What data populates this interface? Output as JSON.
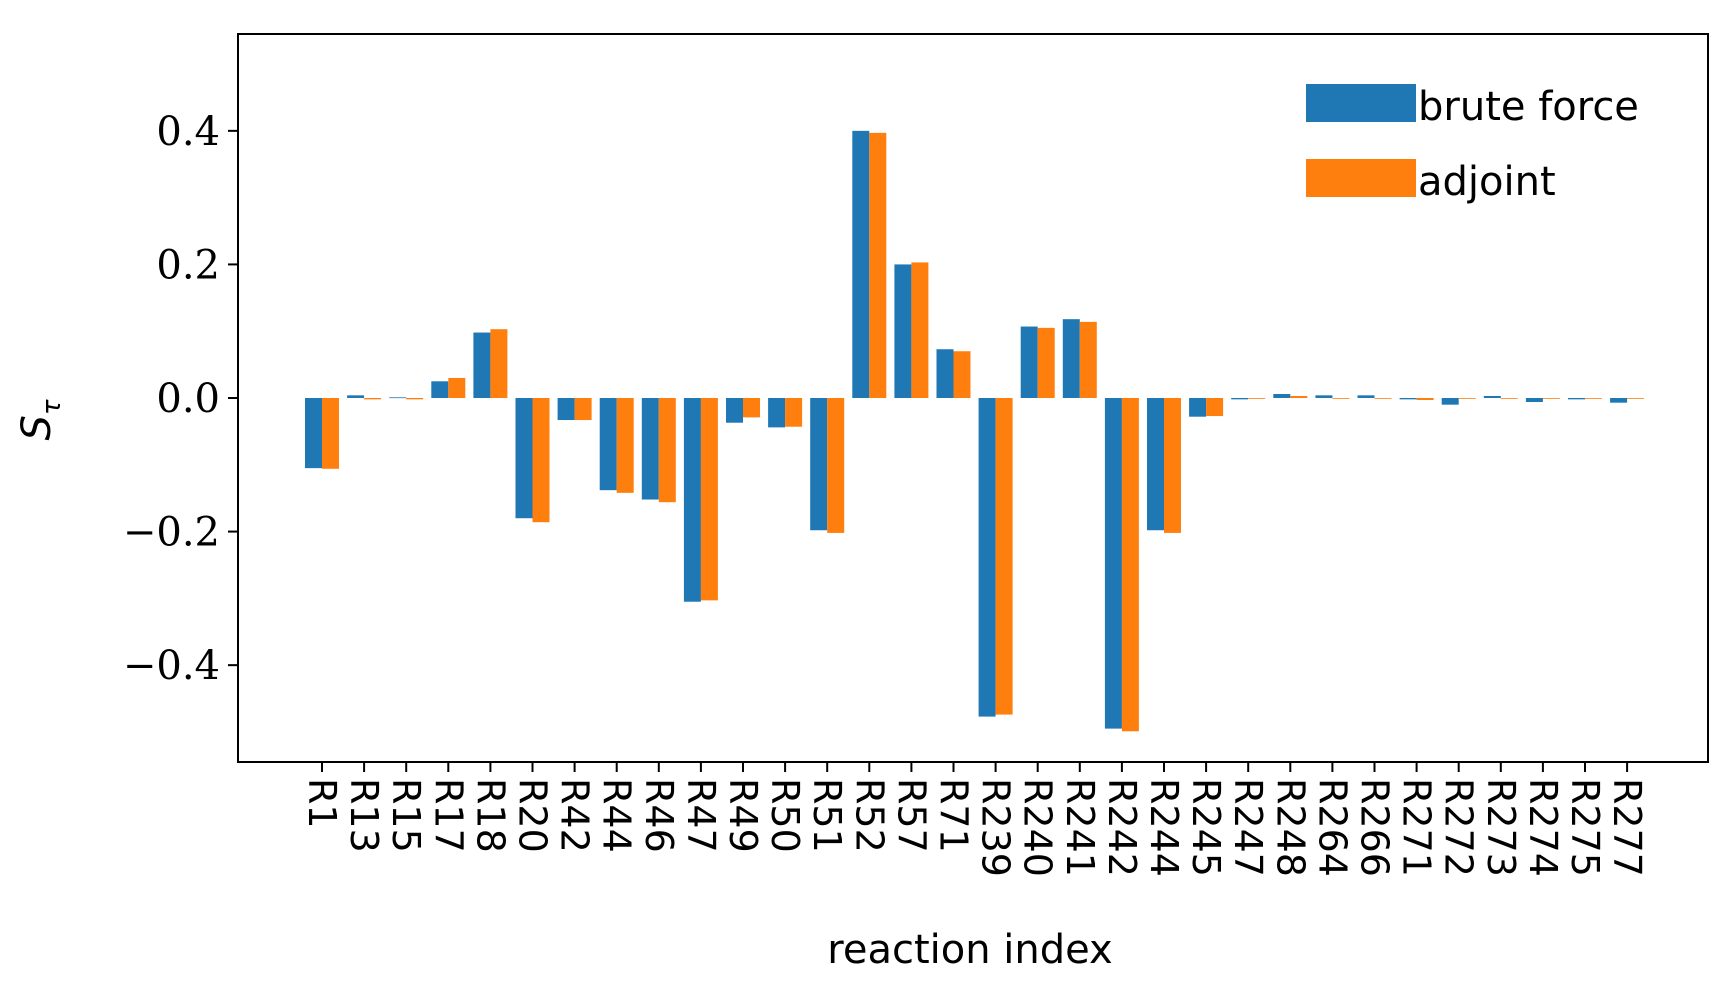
{
  "chart_data": {
    "type": "bar",
    "title": "",
    "xlabel": "reaction index",
    "ylabel": "S",
    "ylabel_sub": "τ",
    "ylim": [
      -0.545,
      0.545
    ],
    "yticks": [
      0.4,
      0.2,
      0.0,
      -0.2,
      -0.4
    ],
    "ytick_labels": [
      "0.4",
      "0.2",
      "0.0",
      "−0.2",
      "−0.4"
    ],
    "legend_position": "top-right",
    "categories": [
      "R1",
      "R13",
      "R15",
      "R17",
      "R18",
      "R20",
      "R42",
      "R44",
      "R46",
      "R47",
      "R49",
      "R50",
      "R51",
      "R52",
      "R57",
      "R71",
      "R239",
      "R240",
      "R241",
      "R242",
      "R244",
      "R245",
      "R247",
      "R248",
      "R264",
      "R266",
      "R271",
      "R272",
      "R273",
      "R274",
      "R275",
      "R277"
    ],
    "series": [
      {
        "name": "brute force",
        "color": "#1f77b4",
        "values": [
          -0.105,
          0.004,
          0.001,
          0.025,
          0.098,
          -0.18,
          -0.033,
          -0.138,
          -0.152,
          -0.305,
          -0.037,
          -0.044,
          -0.198,
          0.4,
          0.2,
          0.073,
          -0.477,
          0.107,
          0.118,
          -0.495,
          -0.198,
          -0.028,
          -0.002,
          0.006,
          0.004,
          0.004,
          -0.002,
          -0.01,
          0.003,
          -0.006,
          -0.002,
          -0.007
        ]
      },
      {
        "name": "adjoint",
        "color": "#ff7f0e",
        "values": [
          -0.106,
          -0.002,
          -0.002,
          0.03,
          0.103,
          -0.186,
          -0.033,
          -0.142,
          -0.156,
          -0.303,
          -0.029,
          -0.043,
          -0.202,
          0.397,
          0.203,
          0.07,
          -0.474,
          0.105,
          0.114,
          -0.499,
          -0.202,
          -0.027,
          0.0,
          0.003,
          0.0,
          0.0,
          -0.003,
          0.0,
          0.0,
          0.0,
          0.0,
          0.0
        ]
      }
    ]
  }
}
